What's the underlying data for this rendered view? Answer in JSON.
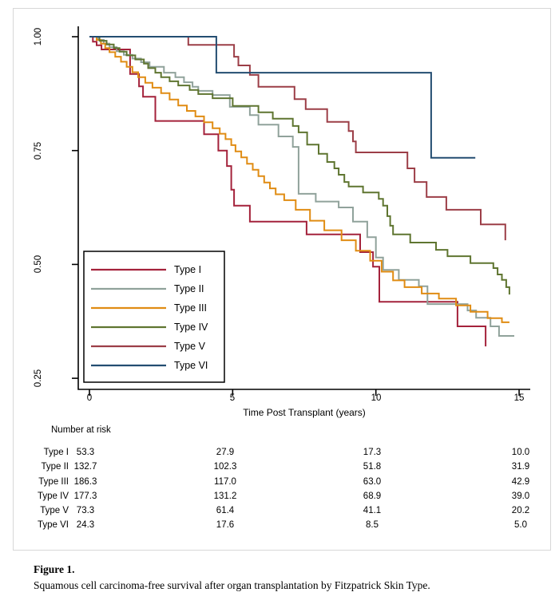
{
  "figure": {
    "caption_label": "Figure 1.",
    "caption_text": "Squamous cell carcinoma-free survival after organ transplantation by Fitzpatrick Skin Type."
  },
  "chart_data": {
    "type": "line",
    "subtype": "kaplan-meier-step-survival",
    "title": "",
    "xlabel": "Time Post Transplant (years)",
    "ylabel": "",
    "xlim": [
      0,
      15.4
    ],
    "ylim": [
      0.22,
      1.0
    ],
    "grid": false,
    "legend_position": "inside-bottom-left",
    "x_ticks": [
      0,
      5,
      10,
      15
    ],
    "x_tick_labels": [
      "0",
      "5",
      "10",
      "15"
    ],
    "y_ticks": [
      1.0,
      0.75,
      0.5,
      0.25
    ],
    "y_tick_labels": [
      "1.00",
      "0.75",
      "0.50",
      "0.25"
    ],
    "series": [
      {
        "name": "Type I",
        "color": "#A4223B",
        "end": 13.83,
        "points": [
          [
            0,
            1
          ],
          [
            0.12,
            0.989
          ],
          [
            0.25,
            0.981
          ],
          [
            0.42,
            0.972
          ],
          [
            1.42,
            0.918
          ],
          [
            1.73,
            0.891
          ],
          [
            1.87,
            0.868
          ],
          [
            2.3,
            0.815
          ],
          [
            4.0,
            0.786
          ],
          [
            4.5,
            0.75
          ],
          [
            4.8,
            0.716
          ],
          [
            4.95,
            0.664
          ],
          [
            5.05,
            0.629
          ],
          [
            5.6,
            0.594
          ],
          [
            7.58,
            0.566
          ],
          [
            9.45,
            0.527
          ],
          [
            9.9,
            0.495
          ],
          [
            10.12,
            0.418
          ],
          [
            12.85,
            0.364
          ],
          [
            13.83,
            0.32
          ]
        ]
      },
      {
        "name": "Type II",
        "color": "#90A29B",
        "end": 14.83,
        "points": [
          [
            0,
            1
          ],
          [
            0.3,
            0.993
          ],
          [
            0.5,
            0.985
          ],
          [
            0.7,
            0.977
          ],
          [
            0.95,
            0.968
          ],
          [
            1.2,
            0.96
          ],
          [
            1.5,
            0.952
          ],
          [
            1.8,
            0.944
          ],
          [
            2.1,
            0.934
          ],
          [
            2.6,
            0.921
          ],
          [
            3.0,
            0.911
          ],
          [
            3.3,
            0.9
          ],
          [
            3.6,
            0.89
          ],
          [
            3.8,
            0.881
          ],
          [
            4.3,
            0.872
          ],
          [
            4.9,
            0.846
          ],
          [
            5.6,
            0.828
          ],
          [
            5.9,
            0.807
          ],
          [
            6.6,
            0.781
          ],
          [
            7.1,
            0.758
          ],
          [
            7.3,
            0.655
          ],
          [
            7.9,
            0.638
          ],
          [
            8.7,
            0.625
          ],
          [
            9.2,
            0.594
          ],
          [
            9.7,
            0.56
          ],
          [
            10.0,
            0.515
          ],
          [
            10.25,
            0.488
          ],
          [
            10.8,
            0.466
          ],
          [
            11.5,
            0.452
          ],
          [
            11.8,
            0.413
          ],
          [
            13.2,
            0.399
          ],
          [
            13.5,
            0.383
          ],
          [
            14.0,
            0.364
          ],
          [
            14.3,
            0.343
          ]
        ]
      },
      {
        "name": "Type III",
        "color": "#E08C13",
        "end": 14.66,
        "points": [
          [
            0,
            1
          ],
          [
            0.25,
            0.993
          ],
          [
            0.4,
            0.985
          ],
          [
            0.55,
            0.975
          ],
          [
            0.7,
            0.966
          ],
          [
            0.9,
            0.956
          ],
          [
            1.1,
            0.945
          ],
          [
            1.3,
            0.934
          ],
          [
            1.5,
            0.922
          ],
          [
            1.7,
            0.911
          ],
          [
            1.95,
            0.899
          ],
          [
            2.2,
            0.888
          ],
          [
            2.5,
            0.876
          ],
          [
            2.8,
            0.862
          ],
          [
            3.1,
            0.849
          ],
          [
            3.4,
            0.837
          ],
          [
            3.7,
            0.825
          ],
          [
            4.0,
            0.812
          ],
          [
            4.3,
            0.799
          ],
          [
            4.55,
            0.787
          ],
          [
            4.75,
            0.775
          ],
          [
            4.95,
            0.762
          ],
          [
            5.1,
            0.748
          ],
          [
            5.3,
            0.735
          ],
          [
            5.5,
            0.721
          ],
          [
            5.7,
            0.708
          ],
          [
            5.9,
            0.694
          ],
          [
            6.1,
            0.68
          ],
          [
            6.3,
            0.667
          ],
          [
            6.5,
            0.654
          ],
          [
            6.8,
            0.641
          ],
          [
            7.2,
            0.62
          ],
          [
            7.7,
            0.596
          ],
          [
            8.2,
            0.575
          ],
          [
            8.8,
            0.553
          ],
          [
            9.3,
            0.53
          ],
          [
            9.8,
            0.508
          ],
          [
            10.2,
            0.484
          ],
          [
            10.6,
            0.465
          ],
          [
            11.0,
            0.45
          ],
          [
            11.6,
            0.436
          ],
          [
            12.2,
            0.425
          ],
          [
            12.8,
            0.41
          ],
          [
            13.3,
            0.396
          ],
          [
            13.9,
            0.382
          ],
          [
            14.4,
            0.373
          ]
        ]
      },
      {
        "name": "Type IV",
        "color": "#5F7530",
        "end": 14.66,
        "points": [
          [
            0,
            1
          ],
          [
            0.35,
            0.991
          ],
          [
            0.6,
            0.983
          ],
          [
            0.85,
            0.975
          ],
          [
            1.05,
            0.967
          ],
          [
            1.3,
            0.959
          ],
          [
            1.6,
            0.95
          ],
          [
            1.9,
            0.941
          ],
          [
            2.05,
            0.931
          ],
          [
            2.3,
            0.921
          ],
          [
            2.5,
            0.911
          ],
          [
            2.8,
            0.902
          ],
          [
            3.1,
            0.893
          ],
          [
            3.5,
            0.883
          ],
          [
            3.8,
            0.874
          ],
          [
            4.3,
            0.865
          ],
          [
            5.0,
            0.848
          ],
          [
            5.9,
            0.834
          ],
          [
            6.4,
            0.82
          ],
          [
            7.1,
            0.804
          ],
          [
            7.3,
            0.79
          ],
          [
            7.6,
            0.763
          ],
          [
            8.0,
            0.743
          ],
          [
            8.3,
            0.725
          ],
          [
            8.55,
            0.711
          ],
          [
            8.7,
            0.697
          ],
          [
            8.9,
            0.681
          ],
          [
            9.05,
            0.671
          ],
          [
            9.55,
            0.658
          ],
          [
            10.1,
            0.644
          ],
          [
            10.25,
            0.629
          ],
          [
            10.4,
            0.606
          ],
          [
            10.5,
            0.585
          ],
          [
            10.6,
            0.566
          ],
          [
            11.2,
            0.548
          ],
          [
            12.1,
            0.532
          ],
          [
            12.5,
            0.518
          ],
          [
            13.3,
            0.503
          ],
          [
            14.1,
            0.492
          ],
          [
            14.25,
            0.478
          ],
          [
            14.4,
            0.466
          ],
          [
            14.55,
            0.45
          ],
          [
            14.66,
            0.434
          ]
        ]
      },
      {
        "name": "Type V",
        "color": "#9C3E47",
        "end": 14.52,
        "points": [
          [
            0,
            1
          ],
          [
            3.45,
            0.982
          ],
          [
            5.05,
            0.956
          ],
          [
            5.2,
            0.937
          ],
          [
            5.6,
            0.916
          ],
          [
            5.9,
            0.89
          ],
          [
            7.16,
            0.863
          ],
          [
            7.55,
            0.841
          ],
          [
            8.3,
            0.813
          ],
          [
            9.05,
            0.793
          ],
          [
            9.2,
            0.77
          ],
          [
            9.3,
            0.746
          ],
          [
            11.1,
            0.711
          ],
          [
            11.35,
            0.681
          ],
          [
            11.77,
            0.648
          ],
          [
            12.46,
            0.62
          ],
          [
            13.66,
            0.588
          ],
          [
            14.52,
            0.553
          ]
        ]
      },
      {
        "name": "Type VI",
        "color": "#234D71",
        "end": 13.47,
        "points": [
          [
            0,
            1
          ],
          [
            4.43,
            0.921
          ],
          [
            11.93,
            0.734
          ]
        ]
      }
    ]
  },
  "risk_table": {
    "title": "Number at risk",
    "time_points": [
      0,
      5,
      10,
      15
    ],
    "rows": [
      {
        "label": "Type I",
        "values": [
          "53.3",
          "27.9",
          "17.3",
          "10.0"
        ]
      },
      {
        "label": "Type II",
        "values": [
          "132.7",
          "102.3",
          "51.8",
          "31.9"
        ]
      },
      {
        "label": "Type III",
        "values": [
          "186.3",
          "117.0",
          "63.0",
          "42.9"
        ]
      },
      {
        "label": "Type IV",
        "values": [
          "177.3",
          "131.2",
          "68.9",
          "39.0"
        ]
      },
      {
        "label": "Type V",
        "values": [
          "73.3",
          "61.4",
          "41.1",
          "20.2"
        ]
      },
      {
        "label": "Type VI",
        "values": [
          "24.3",
          "17.6",
          "8.5",
          "5.0"
        ]
      }
    ]
  }
}
